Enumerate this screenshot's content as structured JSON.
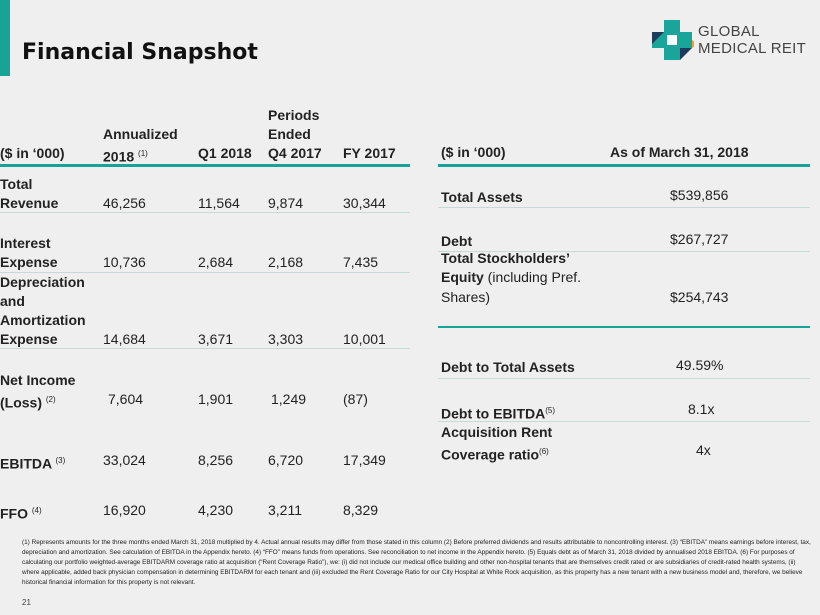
{
  "title": "Financial Snapshot",
  "logo": {
    "line1": "GLOBAL",
    "line2": "MEDICAL REIT"
  },
  "left_table": {
    "headers": {
      "unit": "($ in ‘000)",
      "annualized": "Annualized",
      "annualized_year": "2018",
      "annualized_note": "(1)",
      "q1": "Q1 2018",
      "periods": "Periods",
      "ended": "Ended",
      "q4": "Q4 2017",
      "fy": "FY 2017"
    },
    "rows": [
      {
        "label": [
          "Total",
          "Revenue"
        ],
        "note": "",
        "values": [
          "46,256",
          "11,564",
          "9,874",
          "30,344"
        ]
      },
      {
        "label": [
          "Interest",
          "Expense"
        ],
        "note": "",
        "values": [
          "10,736",
          "2,684",
          "2,168",
          "7,435"
        ]
      },
      {
        "label": [
          "Depreciation",
          "and",
          "Amortization",
          "Expense"
        ],
        "note": "",
        "values": [
          "14,684",
          "3,671",
          "3,303",
          "10,001"
        ]
      },
      {
        "label": [
          "Net Income",
          "(Loss)"
        ],
        "note": "(2)",
        "values": [
          "7,604",
          "1,901",
          "1,249",
          "(87)"
        ]
      },
      {
        "label": [
          "EBITDA"
        ],
        "note": "(3)",
        "values": [
          "33,024",
          "8,256",
          "6,720",
          "17,349"
        ]
      },
      {
        "label": [
          "FFO"
        ],
        "note": "(4)",
        "values": [
          "16,920",
          "4,230",
          "3,211",
          "8,329"
        ]
      }
    ]
  },
  "right_table": {
    "headers": {
      "unit": "($ in ‘000)",
      "asof": "As of March 31, 2018"
    },
    "total_assets": {
      "label": "Total Assets",
      "value": "$539,856"
    },
    "debt": {
      "label": "Debt",
      "value": "$267,727"
    },
    "equity": {
      "label1": "Total Stockholders’",
      "label2b": "Equity",
      "label2": " (including Pref.",
      "label3": "Shares)",
      "value": "$254,743"
    },
    "debt_assets": {
      "label": "Debt to Total Assets",
      "value": "49.59%"
    },
    "debt_ebitda": {
      "label": "Debt to EBITDA",
      "note": "(5)",
      "value": "8.1x"
    },
    "coverage": {
      "label1": "Acquisition Rent",
      "label2": "Coverage ratio",
      "note": "(6)",
      "value": "4x"
    }
  },
  "footnote": "(1) Represents amounts for the three months ended March 31, 2018 multiplied by 4. Actual annual results may differ from those stated in this column (2) Before preferred dividends and results attributable to noncontrolling interest. (3) “EBITDA” means earnings before interest, tax, depreciation and amortization. See calculation of EBITDA in the Appendix hereto. (4) “FFO” means funds from operations. See reconciliation to net income in the Appendix hereto. (5) Equals debt as of March 31, 2018 divided by annualised 2018 EBITDA. (6) For purposes of calculating our portfolio weighted-average EBITDARM coverage ratio at acquisition (“Rent Coverage Ratio”), we: (i) did not include our medical office building and other non-hospital tenants that are themselves credit rated or are subsidiaries of credit-rated health systems, (ii) where applicable, added back physician compensation in determining EBITDARM for each tenant and (iii) excluded the Rent Coverage Ratio for our City Hospital at White Rock acquisition, as this property has a new tenant with a new business model and, therefore, we believe historical financial information for this property is not relevant.",
  "page_number": "21"
}
